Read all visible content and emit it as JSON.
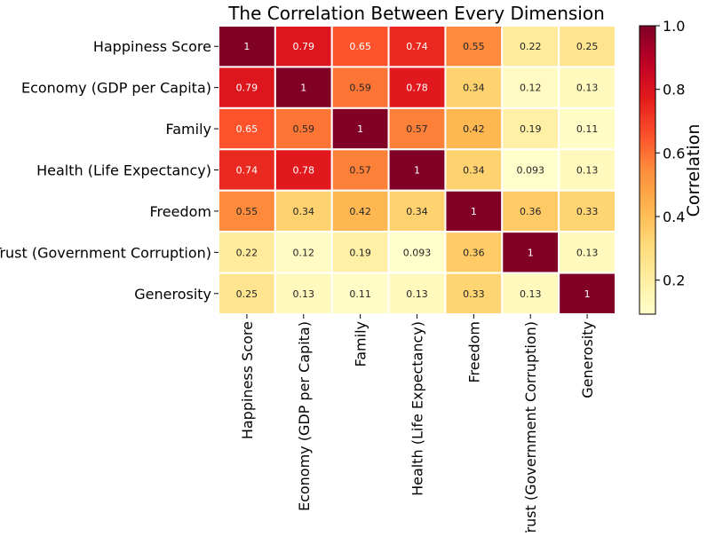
{
  "chart_data": {
    "type": "heatmap",
    "title": "The Correlation Between Every Dimension",
    "categories": [
      "Happiness Score",
      "Economy (GDP per Capita)",
      "Family",
      "Health (Life Expectancy)",
      "Freedom",
      "Trust (Government Corruption)",
      "Generosity"
    ],
    "values": [
      [
        1,
        0.79,
        0.65,
        0.74,
        0.55,
        0.22,
        0.25
      ],
      [
        0.79,
        1,
        0.59,
        0.78,
        0.34,
        0.12,
        0.13
      ],
      [
        0.65,
        0.59,
        1,
        0.57,
        0.42,
        0.19,
        0.11
      ],
      [
        0.74,
        0.78,
        0.57,
        1,
        0.34,
        0.093,
        0.13
      ],
      [
        0.55,
        0.34,
        0.42,
        0.34,
        1,
        0.36,
        0.33
      ],
      [
        0.22,
        0.12,
        0.19,
        0.093,
        0.36,
        1,
        0.13
      ],
      [
        0.25,
        0.13,
        0.11,
        0.13,
        0.33,
        0.13,
        1
      ]
    ],
    "labels": [
      [
        "1",
        "0.79",
        "0.65",
        "0.74",
        "0.55",
        "0.22",
        "0.25"
      ],
      [
        "0.79",
        "1",
        "0.59",
        "0.78",
        "0.34",
        "0.12",
        "0.13"
      ],
      [
        "0.65",
        "0.59",
        "1",
        "0.57",
        "0.42",
        "0.19",
        "0.11"
      ],
      [
        "0.74",
        "0.78",
        "0.57",
        "1",
        "0.34",
        "0.093",
        "0.13"
      ],
      [
        "0.55",
        "0.34",
        "0.42",
        "0.34",
        "1",
        "0.36",
        "0.33"
      ],
      [
        "0.22",
        "0.12",
        "0.19",
        "0.093",
        "0.36",
        "1",
        "0.13"
      ],
      [
        "0.25",
        "0.13",
        "0.11",
        "0.13",
        "0.33",
        "0.13",
        "1"
      ]
    ],
    "colormap": "YlOrRd",
    "vmin": 0.093,
    "vmax": 1.0,
    "colorbar": {
      "label": "Correlation",
      "ticks": [
        0.2,
        0.4,
        0.6,
        0.8,
        1.0
      ],
      "tick_labels": [
        "0.2",
        "0.4",
        "0.6",
        "0.8",
        "1.0"
      ]
    },
    "grid": true,
    "cell_line_color": "#ffffff"
  }
}
